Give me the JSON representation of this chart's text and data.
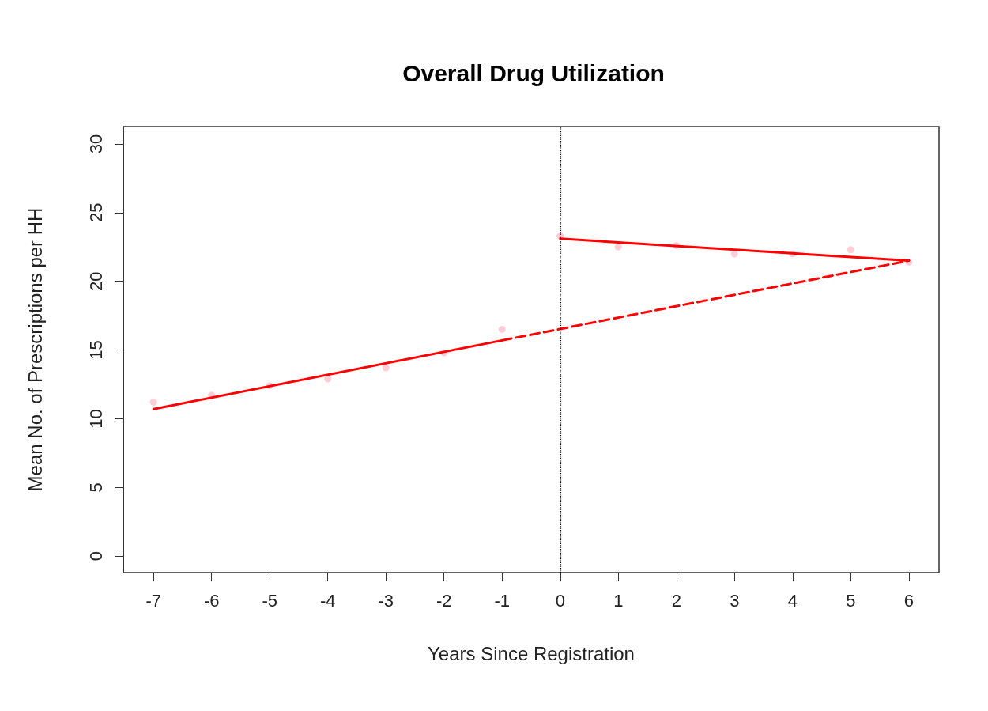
{
  "chart_data": {
    "type": "scatter",
    "title": "Overall Drug Utilization",
    "xlabel": "Years Since Registration",
    "ylabel": "Mean No. of Prescriptions per HH",
    "series": [
      {
        "color": "#ffc0cb",
        "marker": "circle",
        "x": [
          -7,
          -6,
          -5,
          -4,
          -3,
          -2,
          -1,
          0,
          1,
          2,
          3,
          4,
          5,
          6
        ],
        "values": [
          11.2,
          11.7,
          12.4,
          12.9,
          13.7,
          14.8,
          16.5,
          23.3,
          22.5,
          22.6,
          22.0,
          22.0,
          22.3,
          21.4
        ]
      },
      {
        "type": "line",
        "color": "#ff0000",
        "line_style": "solid",
        "x": [
          -7,
          -1
        ],
        "values": [
          10.7,
          15.7
        ]
      },
      {
        "type": "line",
        "color": "#ff0000",
        "line_style": "dashed",
        "x": [
          -1,
          6
        ],
        "values": [
          15.7,
          21.5
        ]
      },
      {
        "type": "line",
        "color": "#ff0000",
        "line_style": "solid",
        "x": [
          0,
          6
        ],
        "values": [
          23.1,
          21.5
        ]
      }
    ],
    "xlim": [
      -7.52,
      6.52
    ],
    "xticks": [
      -7,
      -6,
      -5,
      -4,
      -3,
      -2,
      -1,
      0,
      1,
      2,
      3,
      4,
      5,
      6
    ],
    "ylim": [
      -1.2,
      31.26
    ],
    "yticks": [
      0,
      5,
      10,
      15,
      20,
      25,
      30
    ],
    "ref_lines": [
      {
        "axis": "x",
        "value": 0,
        "color": "#000000",
        "line_style": "dotted"
      }
    ],
    "grid": false
  }
}
